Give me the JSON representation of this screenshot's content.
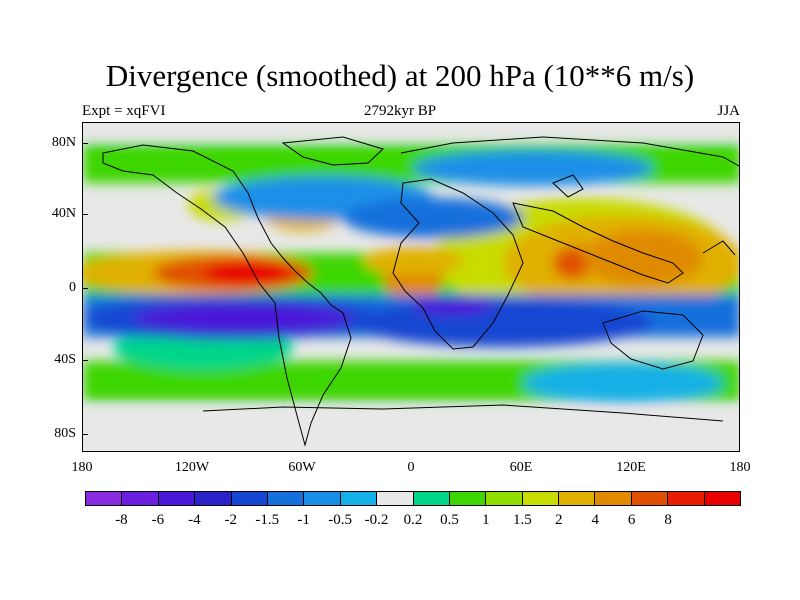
{
  "header": {
    "title": "Divergence (smoothed) at 200 hPa (10**6 m/s)",
    "left": "Expt = xqFVI",
    "center": "2792kyr BP",
    "right": "JJA"
  },
  "map": {
    "ocean_color": "#e8e8e8",
    "coast_color": "#000000",
    "y_ticks": [
      "80N",
      "40N",
      "0",
      "40S",
      "80S"
    ],
    "x_ticks": [
      "180",
      "120W",
      "60W",
      "0",
      "60E",
      "120E",
      "180"
    ]
  },
  "colorbar": {
    "colors": [
      "#8a2be2",
      "#6a1fe0",
      "#4b17d8",
      "#2a22c8",
      "#1546d2",
      "#1570dc",
      "#1a8fe8",
      "#15b0e6",
      "#e8e8e8",
      "#00d68a",
      "#3ed600",
      "#90de00",
      "#c8dc00",
      "#e0b000",
      "#e08a00",
      "#e05000",
      "#e81c00",
      "#e80000"
    ],
    "labels": [
      "-8",
      "-6",
      "-4",
      "-2",
      "-1.5",
      "-1",
      "-0.5",
      "-0.2",
      "0.2",
      "0.5",
      "1",
      "1.5",
      "2",
      "4",
      "6",
      "8"
    ]
  }
}
